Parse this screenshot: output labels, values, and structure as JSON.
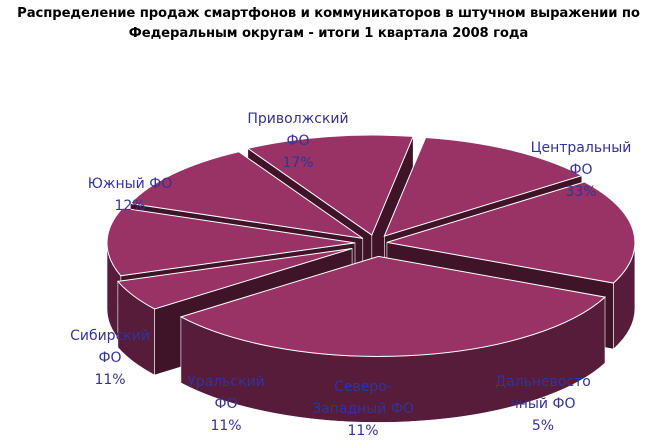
{
  "chart_data": {
    "type": "pie",
    "title_lines": [
      "Распределение продаж смартфонов и коммуникаторов в штучном выражении по",
      "Федеральным округам  - итоги 1 квартала 2008 года"
    ],
    "unit": "%",
    "three_d": true,
    "exploded": true,
    "slices": [
      {
        "label_lines": [
          "Центральный",
          "ФО"
        ],
        "value": 33
      },
      {
        "label_lines": [
          "Дальневосто",
          "чный ФО"
        ],
        "value": 5
      },
      {
        "label_lines": [
          "Северо-",
          "Западный ФО"
        ],
        "value": 11
      },
      {
        "label_lines": [
          "Уральский",
          "ФО"
        ],
        "value": 11
      },
      {
        "label_lines": [
          "Сибирский",
          "ФО"
        ],
        "value": 11
      },
      {
        "label_lines": [
          "Южный ФО"
        ],
        "value": 12
      },
      {
        "label_lines": [
          "Приволжский",
          "ФО"
        ],
        "value": 17
      }
    ],
    "colors": {
      "top": "#993366",
      "side": "#561c39",
      "side_dark": "#3f1429",
      "edge": "#ffffff",
      "label_text": "#333399"
    }
  }
}
